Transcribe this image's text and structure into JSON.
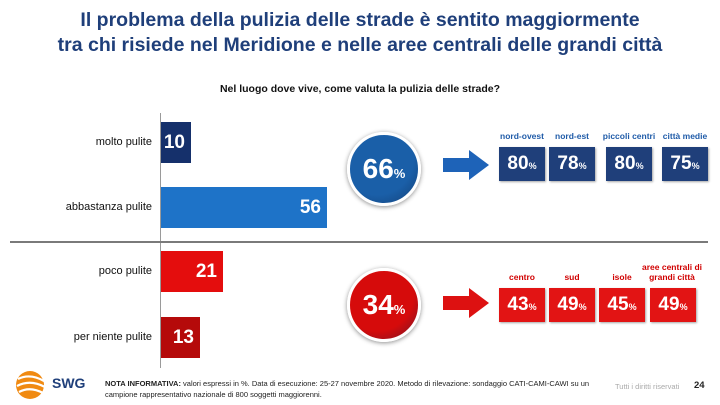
{
  "title": {
    "line1": "Il problema della pulizia delle strade è sentito maggiormente",
    "line2": "tra chi risiede nel Meridione e nelle aree centrali delle grandi città"
  },
  "subtitle": "Nel luogo dove vive, come valuta la pulizia delle strade?",
  "chart_data": {
    "type": "bar",
    "orientation": "horizontal",
    "title": "Nel luogo dove vive, come valuta la pulizia delle strade?",
    "categories": [
      "molto pulite",
      "abbastanza pulite",
      "poco pulite",
      "per niente pulite"
    ],
    "values": [
      10,
      56,
      21,
      13
    ],
    "value_labels": [
      "10",
      "56",
      "21",
      "13"
    ],
    "bar_colors": [
      "#15306b",
      "#1e73c8",
      "#e40d0d",
      "#b50a0a"
    ],
    "xlim": [
      0,
      56
    ],
    "grid": false,
    "aggregates": [
      {
        "value": 66,
        "label": "66",
        "unit": "%",
        "color": "#1a5fa8",
        "breakdown": [
          {
            "label": "nord-ovest",
            "value": 80,
            "display": "80"
          },
          {
            "label": "nord-est",
            "value": 78,
            "display": "78"
          },
          {
            "label": "piccoli centri",
            "value": 80,
            "display": "80"
          },
          {
            "label": "città medie",
            "value": 75,
            "display": "75"
          }
        ]
      },
      {
        "value": 34,
        "label": "34",
        "unit": "%",
        "color": "#d60b0b",
        "breakdown": [
          {
            "label": "centro",
            "value": 43,
            "display": "43"
          },
          {
            "label": "sud",
            "value": 49,
            "display": "49"
          },
          {
            "label": "isole",
            "value": 45,
            "display": "45"
          },
          {
            "label": "aree centrali di grandi città",
            "value": 49,
            "display": "49"
          }
        ]
      }
    ]
  },
  "colors": {
    "title_blue": "#1f3f7a",
    "breakdown_blue": "#1f3f7a",
    "breakdown_red": "#e21414",
    "label_blue": "#1f5ba8",
    "label_red": "#d00000",
    "arrow_blue": "#1e63b8",
    "arrow_red": "#dd1111"
  },
  "footer": {
    "logo_icon": "swg-globe-icon",
    "brand": "SWG",
    "note_label": "NOTA INFORMATIVA:",
    "note_text": " valori espressi in %. Data di esecuzione: 25-27 novembre 2020. Metodo di rilevazione: sondaggio CATI-CAMI-CAWI su un campione rappresentativo nazionale di 800 soggetti maggiorenni.",
    "rights": "Tutti i diritti riservati",
    "page": "24"
  }
}
